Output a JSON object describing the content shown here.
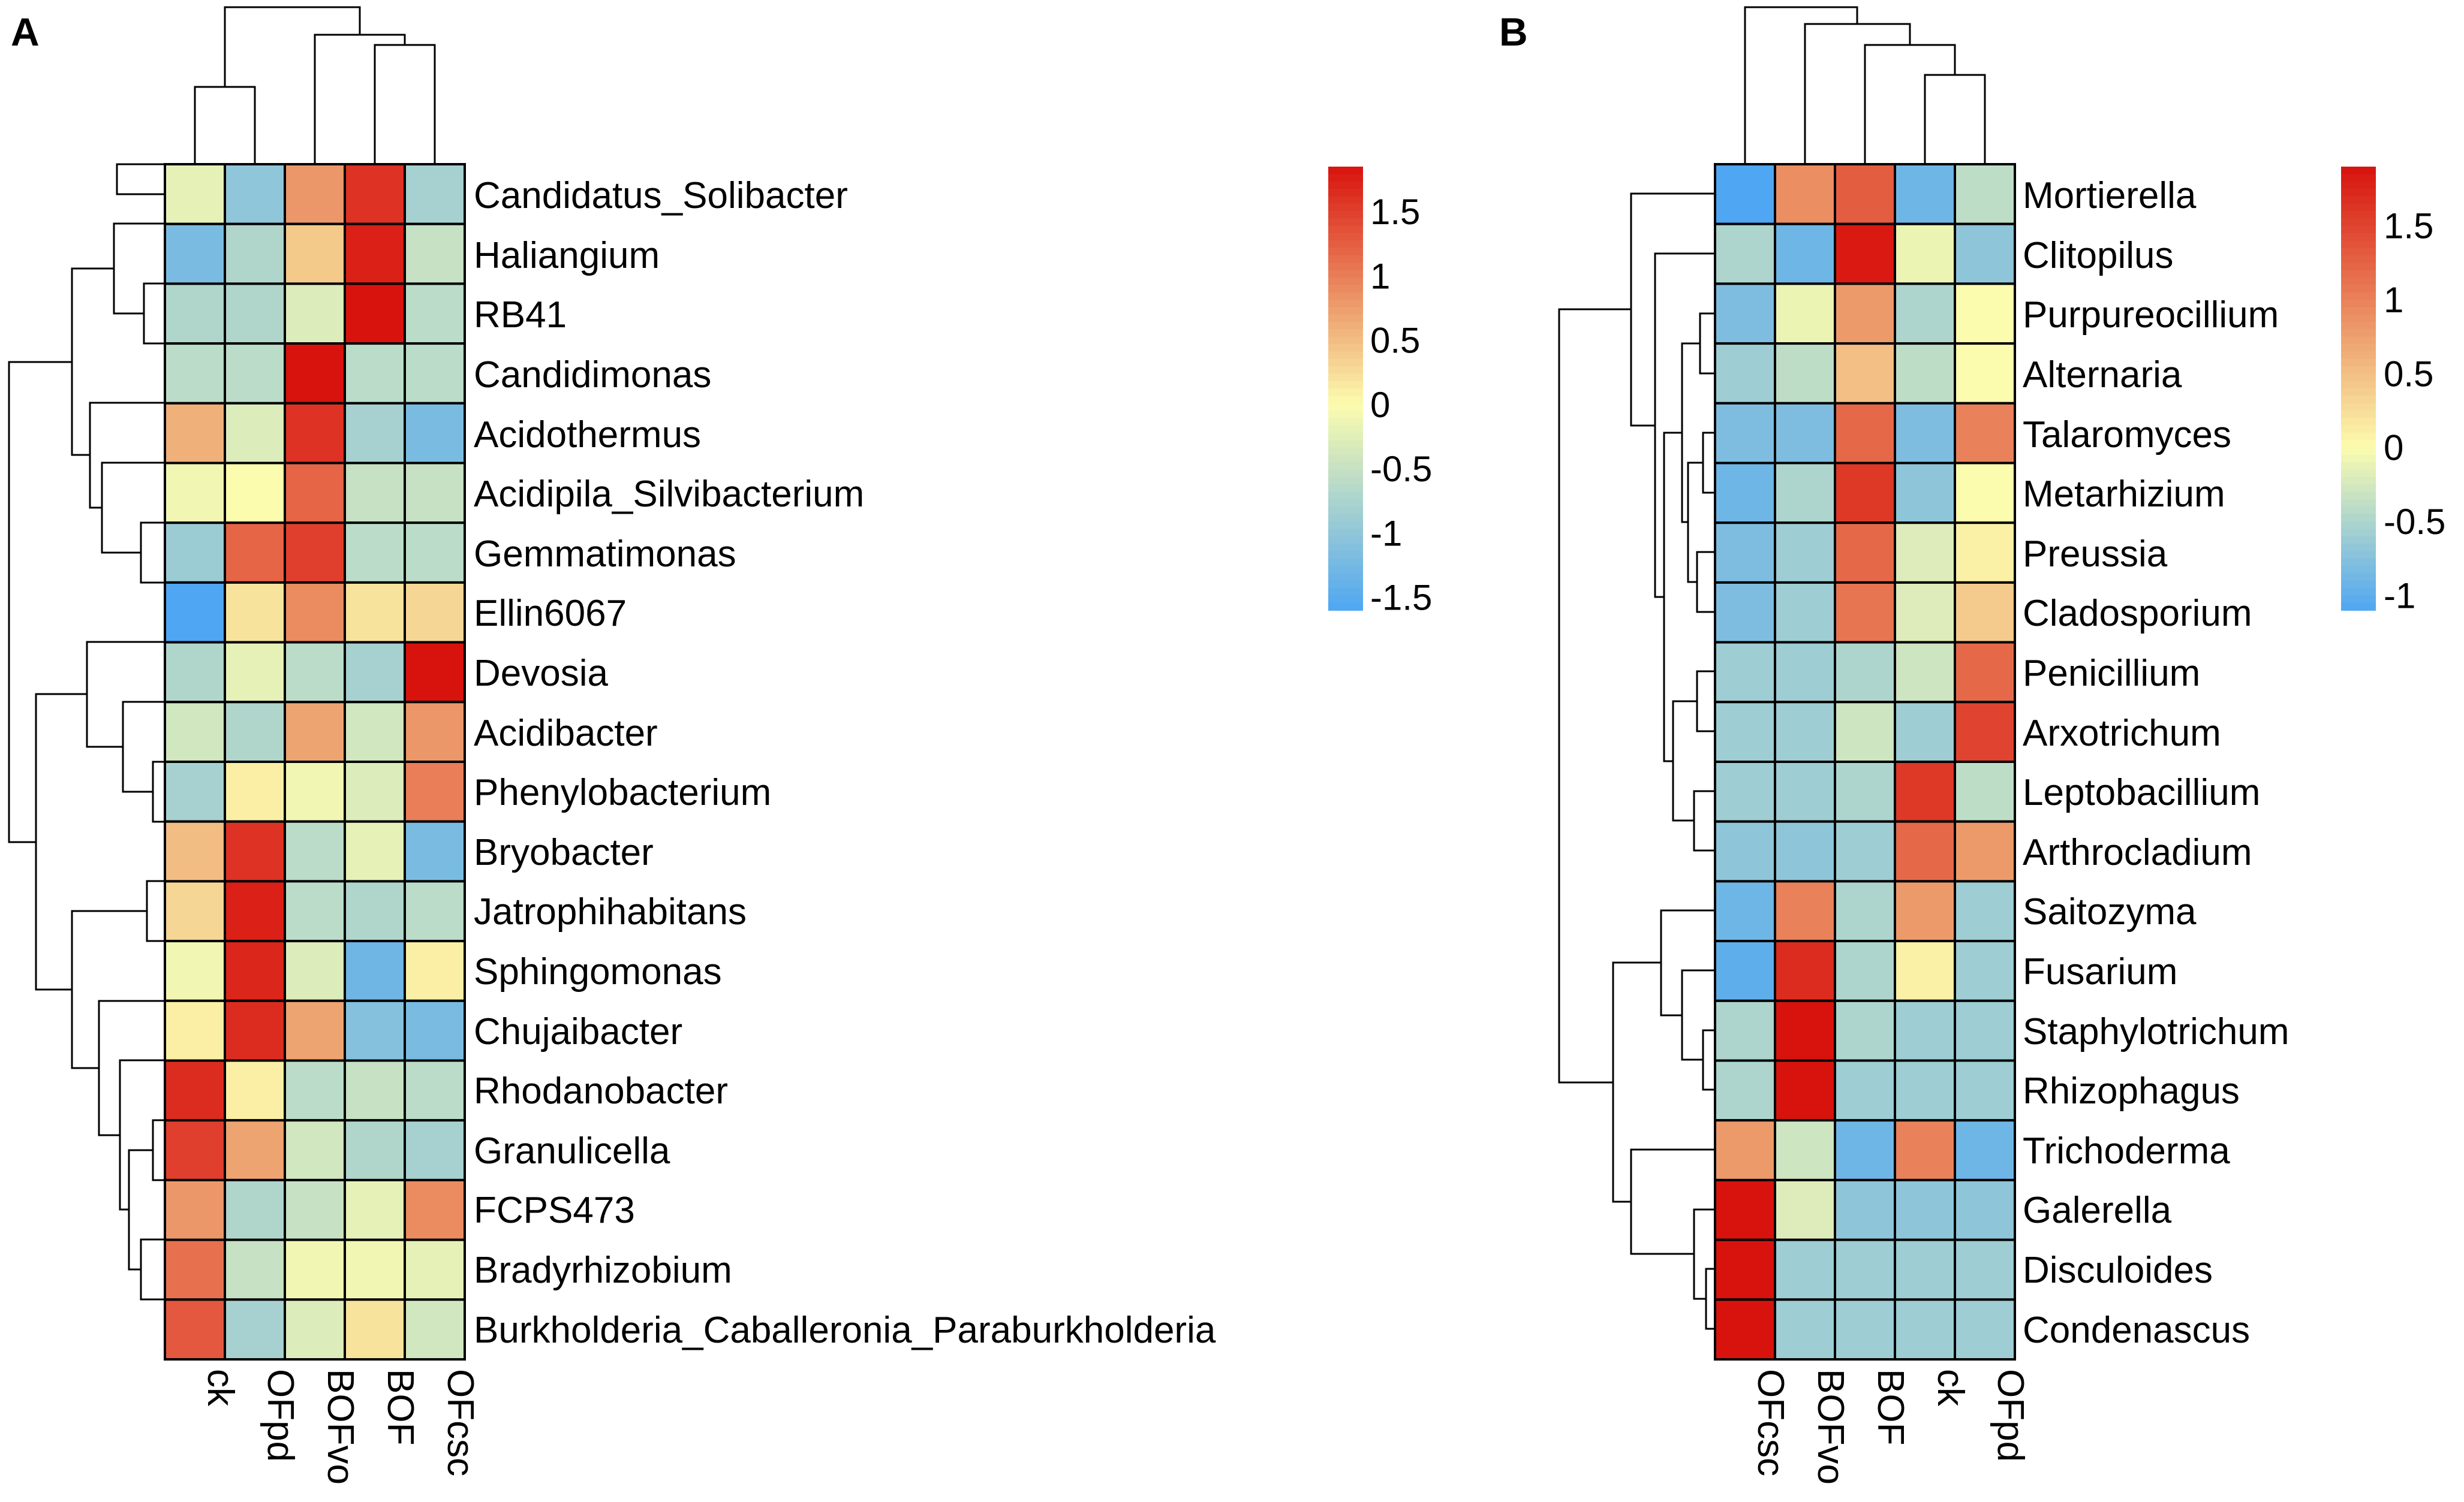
{
  "chart_data": [
    {
      "type": "heatmap",
      "panel_label": "A",
      "rows": [
        "Candidatus_Solibacter",
        "Haliangium",
        "RB41",
        "Candidimonas",
        "Acidothermus",
        "Acidipila_Silvibacterium",
        "Gemmatimonas",
        "Ellin6067",
        "Devosia",
        "Acidibacter",
        "Phenylobacterium",
        "Bryobacter",
        "Jatrophihabitans",
        "Sphingomonas",
        "Chujaibacter",
        "Rhodanobacter",
        "Granulicella",
        "FCPS473",
        "Bradyrhizobium",
        "Burkholderia_Caballeronia_Paraburkholderia"
      ],
      "columns": [
        "ck",
        "OFpd",
        "BOFvo",
        "BOF",
        "OFcsc"
      ],
      "values": [
        [
          -0.2,
          -1.0,
          0.8,
          1.6,
          -0.8
        ],
        [
          -1.2,
          -0.7,
          0.4,
          1.75,
          -0.5
        ],
        [
          -0.7,
          -0.7,
          -0.3,
          1.85,
          -0.6
        ],
        [
          -0.6,
          -0.6,
          1.85,
          -0.6,
          -0.6
        ],
        [
          0.6,
          -0.3,
          1.6,
          -0.8,
          -1.2
        ],
        [
          -0.1,
          0.0,
          1.2,
          -0.5,
          -0.5
        ],
        [
          -0.9,
          1.2,
          1.5,
          -0.6,
          -0.6
        ],
        [
          -1.6,
          0.2,
          0.9,
          0.2,
          0.3
        ],
        [
          -0.7,
          -0.2,
          -0.6,
          -0.8,
          1.85
        ],
        [
          -0.4,
          -0.7,
          0.7,
          -0.4,
          0.8
        ],
        [
          -0.8,
          0.1,
          -0.1,
          -0.3,
          1.0
        ],
        [
          0.5,
          1.6,
          -0.6,
          -0.2,
          -1.2
        ],
        [
          0.3,
          1.75,
          -0.6,
          -0.7,
          -0.6
        ],
        [
          -0.1,
          1.7,
          -0.3,
          -1.3,
          0.1
        ],
        [
          0.1,
          1.65,
          0.7,
          -1.1,
          -1.2
        ],
        [
          1.65,
          0.1,
          -0.6,
          -0.5,
          -0.6
        ],
        [
          1.5,
          0.7,
          -0.4,
          -0.7,
          -0.8
        ],
        [
          0.8,
          -0.7,
          -0.5,
          -0.2,
          0.9
        ],
        [
          1.1,
          -0.5,
          -0.1,
          -0.1,
          -0.2
        ],
        [
          1.3,
          -0.8,
          -0.3,
          0.2,
          -0.4
        ]
      ],
      "color_scale": {
        "min": -1.6,
        "max": 1.85,
        "low_color": "#4FA6F2",
        "mid_color": "#FCFCAE",
        "high_color": "#D8130E"
      },
      "legend_ticks": [
        "1.5",
        "1",
        "0.5",
        "0",
        "-0.5",
        "-1",
        "-1.5"
      ],
      "legend_tick_values": [
        1.5,
        1,
        0.5,
        0,
        -0.5,
        -1,
        -1.5
      ],
      "legend_range": [
        -1.6,
        1.85
      ]
    },
    {
      "type": "heatmap",
      "panel_label": "B",
      "rows": [
        "Mortierella",
        "Clitopilus",
        "Purpureocillium",
        "Alternaria",
        "Talaromyces",
        "Metarhizium",
        "Preussia",
        "Cladosporium",
        "Penicillium",
        "Arxotrichum",
        "Leptobacillium",
        "Arthrocladium",
        "Saitozyma",
        "Fusarium",
        "Staphylotrichum",
        "Rhizophagus",
        "Trichoderma",
        "Galerella",
        "Disculoides",
        "Condenascus"
      ],
      "columns": [
        "OFcsc",
        "BOFvo",
        "BOF",
        "ck",
        "OFpd"
      ],
      "values": [
        [
          -1.1,
          0.9,
          1.3,
          -0.9,
          -0.4
        ],
        [
          -0.5,
          -0.9,
          1.85,
          -0.1,
          -0.7
        ],
        [
          -0.8,
          -0.1,
          0.8,
          -0.5,
          0.0
        ],
        [
          -0.6,
          -0.4,
          0.5,
          -0.4,
          0.0
        ],
        [
          -0.8,
          -0.8,
          1.2,
          -0.8,
          1.0
        ],
        [
          -0.9,
          -0.5,
          1.6,
          -0.7,
          0.0
        ],
        [
          -0.8,
          -0.6,
          1.2,
          -0.2,
          0.1
        ],
        [
          -0.8,
          -0.6,
          1.1,
          -0.2,
          0.4
        ],
        [
          -0.6,
          -0.6,
          -0.5,
          -0.3,
          1.2
        ],
        [
          -0.6,
          -0.6,
          -0.3,
          -0.6,
          1.5
        ],
        [
          -0.6,
          -0.6,
          -0.5,
          1.6,
          -0.4
        ],
        [
          -0.7,
          -0.7,
          -0.6,
          1.2,
          0.8
        ],
        [
          -0.9,
          1.0,
          -0.5,
          0.8,
          -0.6
        ],
        [
          -1.0,
          1.7,
          -0.5,
          0.1,
          -0.6
        ],
        [
          -0.5,
          1.9,
          -0.5,
          -0.6,
          -0.6
        ],
        [
          -0.5,
          1.9,
          -0.6,
          -0.6,
          -0.6
        ],
        [
          0.8,
          -0.3,
          -0.9,
          1.0,
          -0.9
        ],
        [
          1.9,
          -0.2,
          -0.7,
          -0.7,
          -0.7
        ],
        [
          1.9,
          -0.6,
          -0.6,
          -0.6,
          -0.6
        ],
        [
          1.9,
          -0.6,
          -0.6,
          -0.6,
          -0.6
        ]
      ],
      "color_scale": {
        "min": -1.1,
        "max": 1.9,
        "low_color": "#4FA6F2",
        "mid_color": "#FCFCAE",
        "high_color": "#D8130E"
      },
      "legend_ticks": [
        "1.5",
        "1",
        "0.5",
        "0",
        "-0.5",
        "-1"
      ],
      "legend_tick_values": [
        1.5,
        1,
        0.5,
        0,
        -0.5,
        -1
      ],
      "legend_range": [
        -1.1,
        1.9
      ]
    }
  ]
}
